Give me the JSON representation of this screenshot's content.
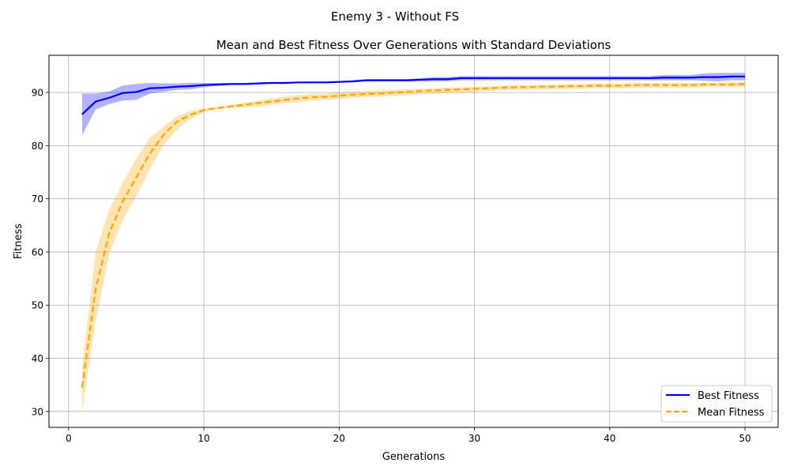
{
  "suptitle": "Enemy 3 - Without FS",
  "chart_data": {
    "type": "line",
    "title": "Mean and Best Fitness Over Generations with Standard Deviations",
    "xlabel": "Generations",
    "ylabel": "Fitness",
    "xlim": [
      -1.45,
      52.45
    ],
    "ylim": [
      27,
      97
    ],
    "xticks": [
      0,
      10,
      20,
      30,
      40,
      50
    ],
    "yticks": [
      30,
      40,
      50,
      60,
      70,
      80,
      90
    ],
    "grid": true,
    "legend_position": "lower-right",
    "x": [
      1,
      2,
      3,
      4,
      5,
      6,
      7,
      8,
      9,
      10,
      11,
      12,
      13,
      14,
      15,
      16,
      17,
      18,
      19,
      20,
      21,
      22,
      23,
      24,
      25,
      26,
      27,
      28,
      29,
      30,
      31,
      32,
      33,
      34,
      35,
      36,
      37,
      38,
      39,
      40,
      41,
      42,
      43,
      44,
      45,
      46,
      47,
      48,
      49,
      50
    ],
    "series": [
      {
        "name": "Best Fitness",
        "color": "#0000ff",
        "band_color": "#0000ff",
        "style": "solid",
        "mean": [
          85.9,
          88.3,
          89.0,
          89.9,
          90.1,
          90.8,
          90.9,
          91.1,
          91.2,
          91.4,
          91.5,
          91.6,
          91.6,
          91.7,
          91.8,
          91.8,
          91.9,
          91.9,
          91.9,
          92.0,
          92.1,
          92.3,
          92.3,
          92.3,
          92.3,
          92.4,
          92.5,
          92.5,
          92.7,
          92.7,
          92.7,
          92.7,
          92.7,
          92.7,
          92.7,
          92.7,
          92.7,
          92.7,
          92.7,
          92.7,
          92.7,
          92.7,
          92.7,
          92.8,
          92.8,
          92.8,
          92.9,
          92.9,
          93.0,
          93.0
        ],
        "upper": [
          89.8,
          89.8,
          90.2,
          91.3,
          91.6,
          91.8,
          91.7,
          91.7,
          91.8,
          91.8,
          91.8,
          91.8,
          91.8,
          91.9,
          91.9,
          92.0,
          92.0,
          92.0,
          92.0,
          92.1,
          92.3,
          92.5,
          92.5,
          92.5,
          92.5,
          92.7,
          92.9,
          92.9,
          93.1,
          93.1,
          93.1,
          93.1,
          93.1,
          93.1,
          93.1,
          93.1,
          93.1,
          93.1,
          93.1,
          93.1,
          93.1,
          93.1,
          93.1,
          93.3,
          93.3,
          93.3,
          93.6,
          93.7,
          93.7,
          93.7
        ],
        "lower": [
          82.0,
          86.8,
          87.8,
          88.5,
          88.6,
          89.8,
          90.1,
          90.5,
          90.6,
          91.0,
          91.2,
          91.4,
          91.4,
          91.5,
          91.7,
          91.6,
          91.8,
          91.8,
          91.8,
          91.9,
          91.9,
          92.1,
          92.1,
          92.1,
          92.1,
          92.1,
          92.1,
          92.1,
          92.3,
          92.3,
          92.3,
          92.3,
          92.3,
          92.3,
          92.3,
          92.3,
          92.3,
          92.3,
          92.3,
          92.3,
          92.3,
          92.3,
          92.3,
          92.3,
          92.3,
          92.3,
          92.2,
          92.1,
          92.3,
          92.3
        ]
      },
      {
        "name": "Mean Fitness",
        "color": "#ffa500",
        "band_color": "#ffa500",
        "style": "dashed",
        "mean": [
          34.5,
          53.0,
          63.5,
          69.5,
          74.0,
          78.5,
          82.0,
          84.5,
          85.8,
          86.7,
          87.1,
          87.4,
          87.7,
          88.0,
          88.3,
          88.6,
          88.9,
          89.1,
          89.2,
          89.4,
          89.6,
          89.7,
          89.8,
          90.0,
          90.1,
          90.3,
          90.4,
          90.5,
          90.6,
          90.7,
          90.8,
          90.9,
          91.0,
          91.0,
          91.1,
          91.1,
          91.2,
          91.2,
          91.3,
          91.3,
          91.3,
          91.4,
          91.4,
          91.4,
          91.4,
          91.4,
          91.5,
          91.5,
          91.5,
          91.6
        ],
        "upper": [
          38.5,
          60.0,
          68.0,
          73.0,
          77.5,
          81.5,
          83.5,
          85.5,
          86.5,
          87.0,
          87.3,
          87.7,
          88.1,
          88.5,
          88.9,
          89.2,
          89.5,
          89.7,
          89.8,
          90.0,
          90.2,
          90.3,
          90.4,
          90.5,
          90.6,
          90.7,
          90.8,
          90.9,
          91.0,
          91.1,
          91.2,
          91.3,
          91.4,
          91.4,
          91.5,
          91.5,
          91.6,
          91.6,
          91.7,
          91.7,
          91.7,
          91.8,
          91.8,
          91.8,
          91.8,
          91.8,
          91.9,
          91.9,
          92.0,
          92.0
        ],
        "lower": [
          30.0,
          47.0,
          59.5,
          66.0,
          70.5,
          75.5,
          80.0,
          83.0,
          85.0,
          86.3,
          86.8,
          87.1,
          87.2,
          87.4,
          87.7,
          88.0,
          88.2,
          88.5,
          88.6,
          88.8,
          89.0,
          89.1,
          89.2,
          89.4,
          89.5,
          89.7,
          89.8,
          89.9,
          90.0,
          90.1,
          90.3,
          90.4,
          90.5,
          90.5,
          90.6,
          90.6,
          90.7,
          90.7,
          90.8,
          90.8,
          90.8,
          90.9,
          90.9,
          90.9,
          90.9,
          90.9,
          91.0,
          91.0,
          91.0,
          91.1
        ]
      }
    ]
  }
}
